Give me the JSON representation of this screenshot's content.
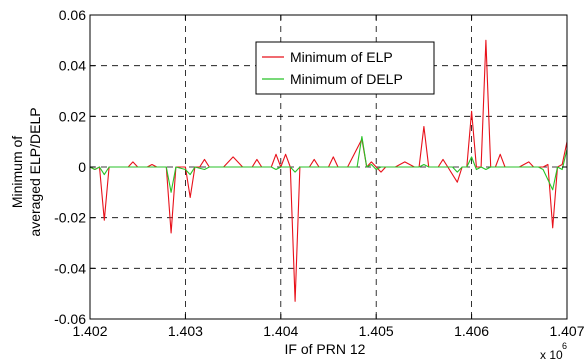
{
  "chart_data": {
    "type": "line",
    "xlabel": "IF of PRN 12",
    "ylabel_lines": [
      "Minimum of",
      "averaged ELP/DELP"
    ],
    "x_multiplier_base": "x 10",
    "x_multiplier_exp": "6",
    "xlim": [
      1402000,
      1407000
    ],
    "ylim": [
      -0.06,
      0.06
    ],
    "x_ticks": [
      1402000,
      1403000,
      1404000,
      1405000,
      1406000,
      1407000
    ],
    "x_tick_labels": [
      "1.402",
      "1.403",
      "1.404",
      "1.405",
      "1.406",
      "1.407"
    ],
    "y_ticks": [
      0.06,
      0.04,
      0.02,
      0,
      -0.02,
      -0.04,
      -0.06
    ],
    "y_tick_labels": [
      "0.06",
      "0.04",
      "0.02",
      "0",
      "-0.02",
      "-0.04",
      "-0.06"
    ],
    "grid": true,
    "grid_style": "dashed",
    "legend_position": "top-center",
    "series": [
      {
        "name": "Minimum of ELP",
        "color": "#e8111a",
        "points": [
          [
            1402000,
            0
          ],
          [
            1402050,
            -0.001
          ],
          [
            1402100,
            0
          ],
          [
            1402150,
            -0.021
          ],
          [
            1402200,
            0
          ],
          [
            1402400,
            0
          ],
          [
            1402450,
            0.002
          ],
          [
            1402500,
            0
          ],
          [
            1402600,
            0
          ],
          [
            1402650,
            0.001
          ],
          [
            1402700,
            0
          ],
          [
            1402800,
            0
          ],
          [
            1402850,
            -0.026
          ],
          [
            1402900,
            0
          ],
          [
            1403000,
            0
          ],
          [
            1403050,
            -0.012
          ],
          [
            1403100,
            0
          ],
          [
            1403150,
            0
          ],
          [
            1403200,
            0.003
          ],
          [
            1403250,
            0
          ],
          [
            1403400,
            0
          ],
          [
            1403500,
            0.004
          ],
          [
            1403600,
            0
          ],
          [
            1403700,
            0
          ],
          [
            1403750,
            0.003
          ],
          [
            1403800,
            0
          ],
          [
            1403900,
            0
          ],
          [
            1403950,
            0.005
          ],
          [
            1404000,
            0
          ],
          [
            1404050,
            0.005
          ],
          [
            1404100,
            0
          ],
          [
            1404150,
            -0.053
          ],
          [
            1404200,
            0
          ],
          [
            1404300,
            0
          ],
          [
            1404350,
            0.003
          ],
          [
            1404400,
            0
          ],
          [
            1404500,
            0
          ],
          [
            1404550,
            0.004
          ],
          [
            1404600,
            0
          ],
          [
            1404700,
            0
          ],
          [
            1404850,
            0.011
          ],
          [
            1404900,
            0
          ],
          [
            1404950,
            0.002
          ],
          [
            1405000,
            0
          ],
          [
            1405050,
            -0.002
          ],
          [
            1405100,
            0
          ],
          [
            1405200,
            0
          ],
          [
            1405300,
            0.002
          ],
          [
            1405400,
            0
          ],
          [
            1405450,
            0
          ],
          [
            1405500,
            0.016
          ],
          [
            1405550,
            0
          ],
          [
            1405650,
            0
          ],
          [
            1405700,
            0.003
          ],
          [
            1405750,
            0
          ],
          [
            1405850,
            -0.006
          ],
          [
            1405900,
            0
          ],
          [
            1405950,
            0
          ],
          [
            1406000,
            0.022
          ],
          [
            1406050,
            0
          ],
          [
            1406100,
            0
          ],
          [
            1406150,
            0.05
          ],
          [
            1406200,
            0
          ],
          [
            1406250,
            0
          ],
          [
            1406300,
            0.005
          ],
          [
            1406350,
            0
          ],
          [
            1406500,
            0
          ],
          [
            1406600,
            0.002
          ],
          [
            1406650,
            0
          ],
          [
            1406750,
            0
          ],
          [
            1406800,
            0.001
          ],
          [
            1406850,
            -0.024
          ],
          [
            1406900,
            0
          ],
          [
            1406950,
            0.001
          ],
          [
            1407000,
            0.01
          ]
        ]
      },
      {
        "name": "Minimum of DELP",
        "color": "#27c227",
        "points": [
          [
            1402000,
            0
          ],
          [
            1402050,
            -0.001
          ],
          [
            1402100,
            0
          ],
          [
            1402150,
            -0.003
          ],
          [
            1402200,
            0
          ],
          [
            1402700,
            0
          ],
          [
            1402800,
            0
          ],
          [
            1402850,
            -0.01
          ],
          [
            1402900,
            0
          ],
          [
            1403000,
            -0.001
          ],
          [
            1403050,
            -0.003
          ],
          [
            1403100,
            0
          ],
          [
            1403200,
            -0.001
          ],
          [
            1403250,
            0
          ],
          [
            1403900,
            0
          ],
          [
            1403950,
            -0.001
          ],
          [
            1404000,
            0
          ],
          [
            1404100,
            0
          ],
          [
            1404150,
            -0.002
          ],
          [
            1404200,
            0
          ],
          [
            1404800,
            0
          ],
          [
            1404850,
            0.012
          ],
          [
            1404900,
            0
          ],
          [
            1404950,
            0.001
          ],
          [
            1405000,
            -0.001
          ],
          [
            1405050,
            0
          ],
          [
            1405450,
            0
          ],
          [
            1405500,
            0.001
          ],
          [
            1405550,
            0
          ],
          [
            1405800,
            0
          ],
          [
            1405850,
            -0.002
          ],
          [
            1405900,
            0
          ],
          [
            1405950,
            0
          ],
          [
            1406000,
            0.004
          ],
          [
            1406050,
            -0.001
          ],
          [
            1406100,
            0
          ],
          [
            1406150,
            -0.001
          ],
          [
            1406200,
            0
          ],
          [
            1406700,
            0
          ],
          [
            1406750,
            -0.001
          ],
          [
            1406850,
            -0.009
          ],
          [
            1406900,
            0
          ],
          [
            1406950,
            -0.001
          ],
          [
            1407000,
            0.007
          ]
        ]
      }
    ]
  }
}
